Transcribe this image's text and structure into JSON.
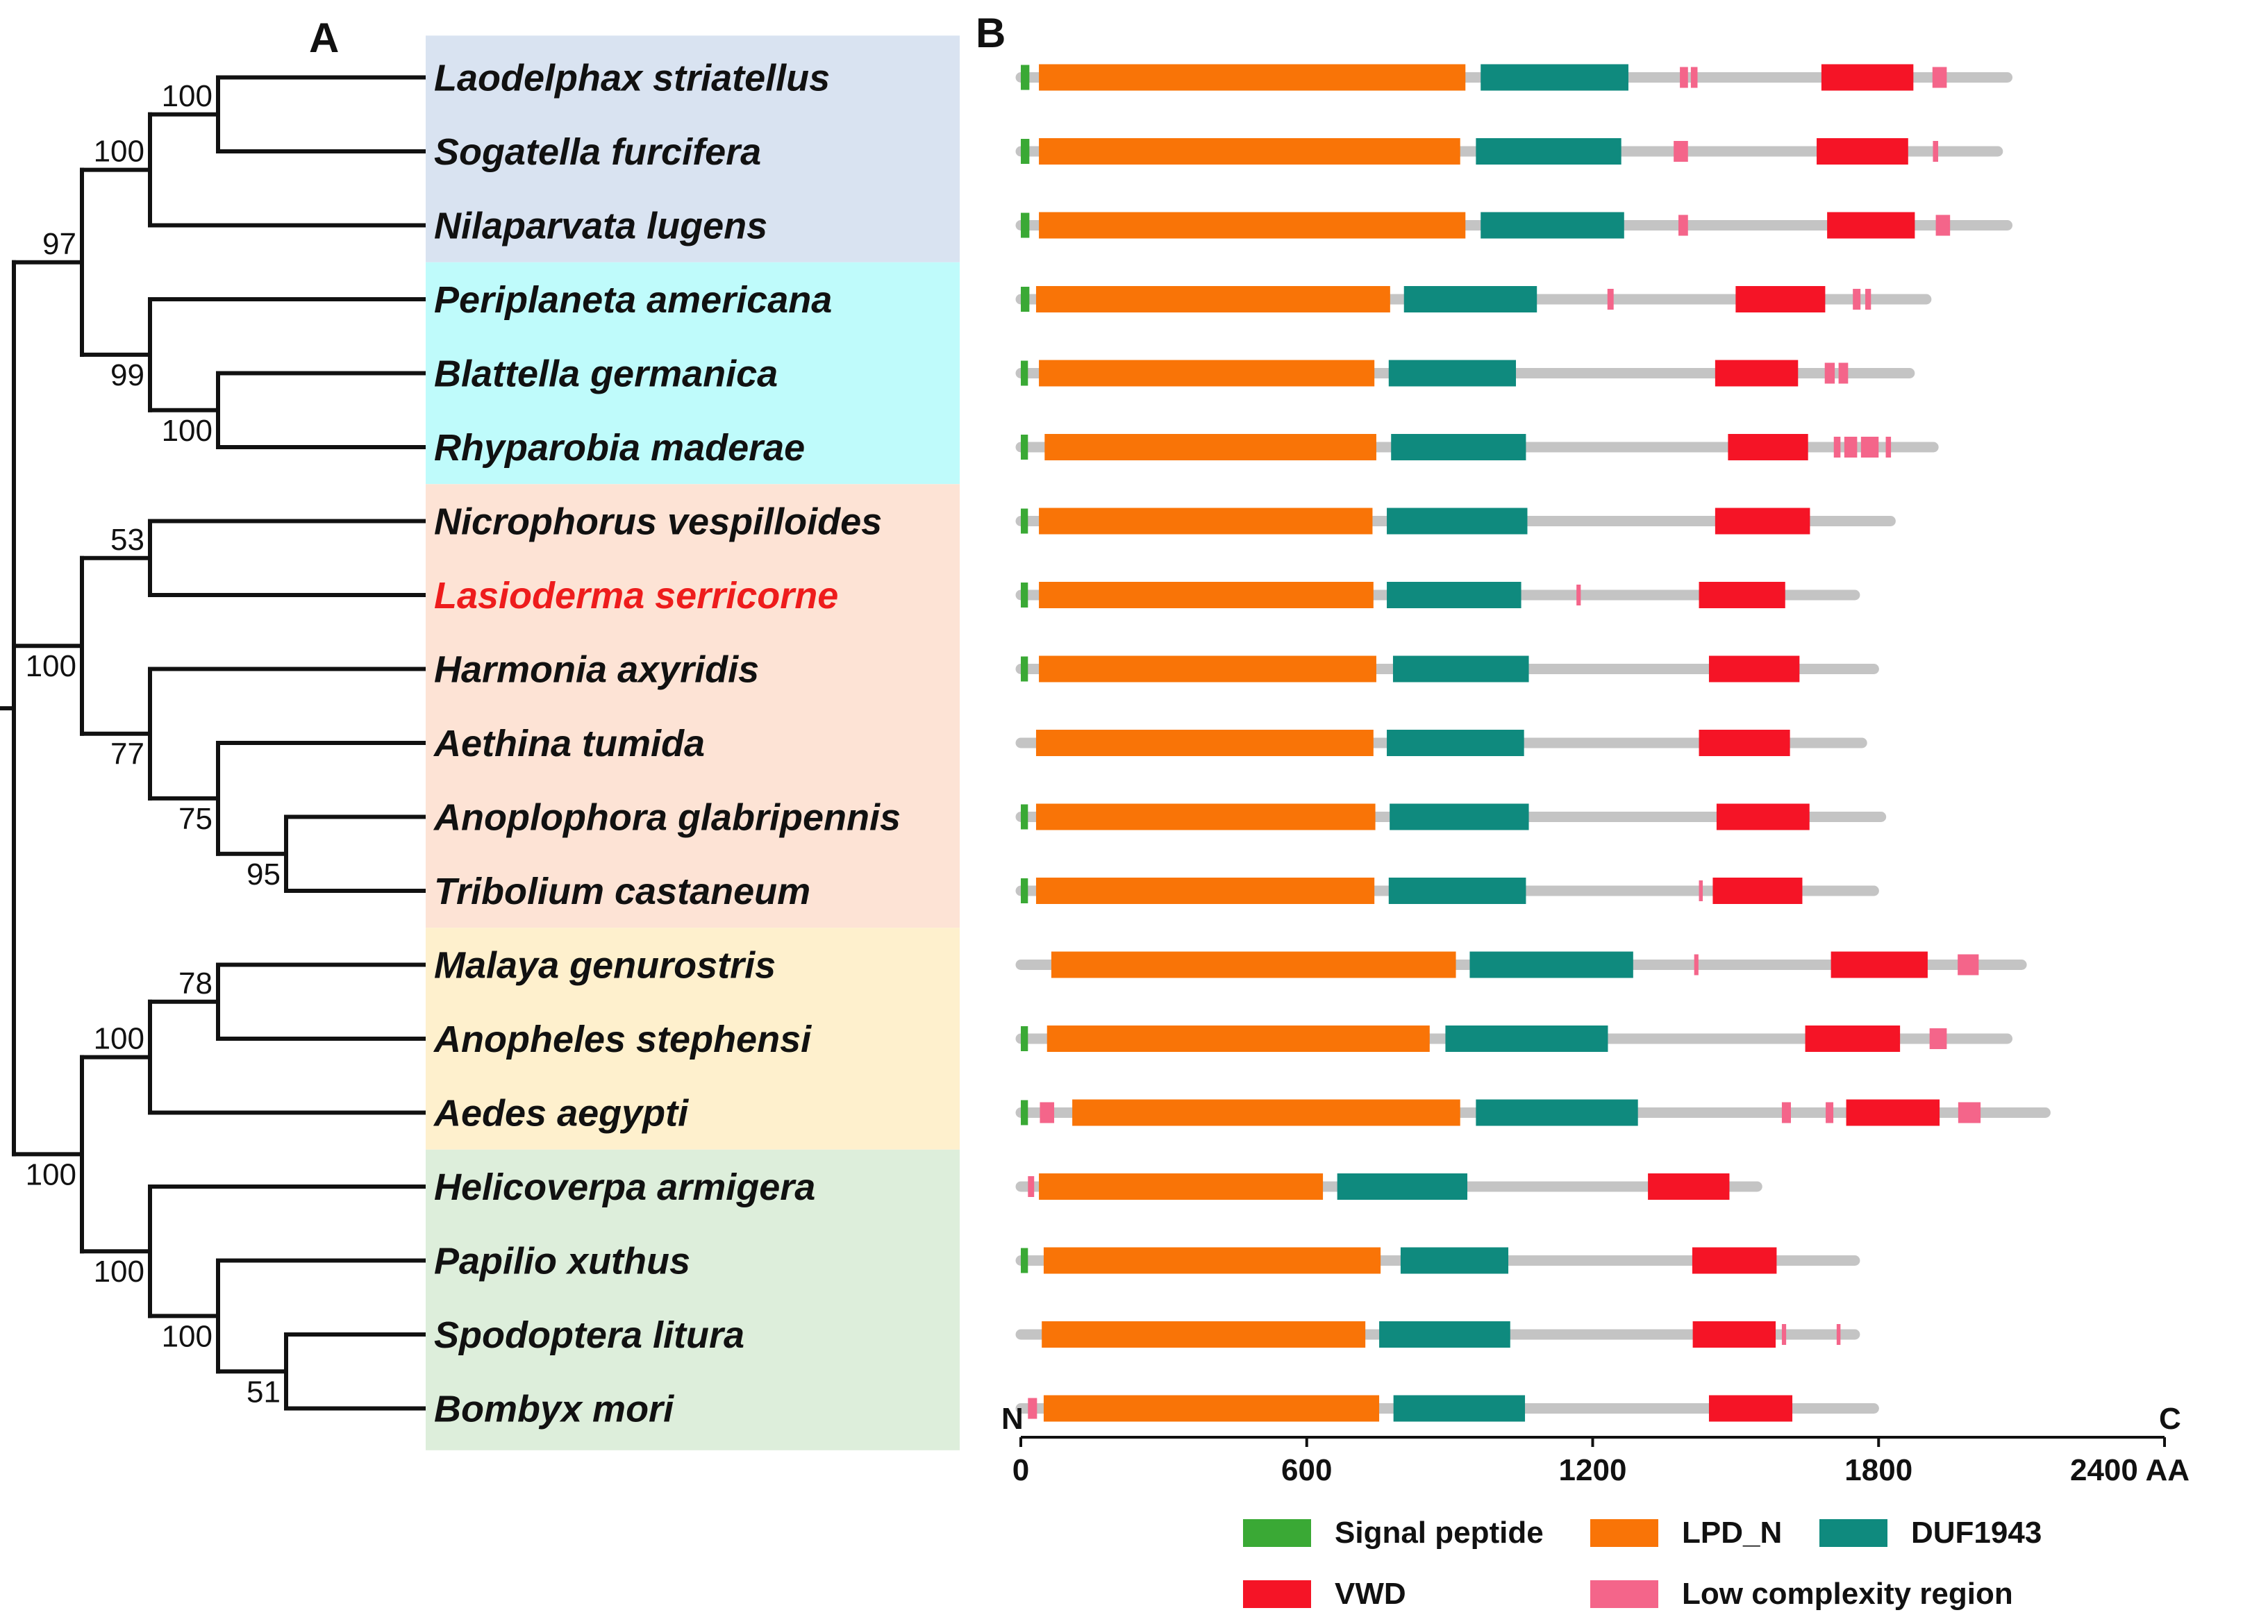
{
  "panels": {
    "a": "A",
    "b": "B"
  },
  "colors": {
    "clade1": "#d9e3f1",
    "clade2": "#bffbfb",
    "clade3": "#fde3d5",
    "clade4": "#fef0cd",
    "clade5": "#ddeedb",
    "signal": "#3aa935",
    "lpd": "#f97407",
    "duf": "#0f8a7e",
    "vwd": "#f51426",
    "lcr": "#f4658a",
    "backbone": "#c4c4c4",
    "highlight": "#ee1c1c",
    "ink": "#111111"
  },
  "species": [
    {
      "name": "Laodelphax striatellus",
      "clade": 1,
      "highlight": false
    },
    {
      "name": "Sogatella furcifera",
      "clade": 1,
      "highlight": false
    },
    {
      "name": "Nilaparvata lugens",
      "clade": 1,
      "highlight": false
    },
    {
      "name": "Periplaneta americana",
      "clade": 2,
      "highlight": false
    },
    {
      "name": "Blattella germanica",
      "clade": 2,
      "highlight": false
    },
    {
      "name": "Rhyparobia maderae",
      "clade": 2,
      "highlight": false
    },
    {
      "name": "Nicrophorus vespilloides",
      "clade": 3,
      "highlight": false
    },
    {
      "name": "Lasioderma serricorne",
      "clade": 3,
      "highlight": true
    },
    {
      "name": "Harmonia axyridis",
      "clade": 3,
      "highlight": false
    },
    {
      "name": "Aethina tumida",
      "clade": 3,
      "highlight": false
    },
    {
      "name": "Anoplophora glabripennis",
      "clade": 3,
      "highlight": false
    },
    {
      "name": "Tribolium castaneum",
      "clade": 3,
      "highlight": false
    },
    {
      "name": "Malaya genurostris",
      "clade": 4,
      "highlight": false
    },
    {
      "name": "Anopheles stephensi",
      "clade": 4,
      "highlight": false
    },
    {
      "name": "Aedes aegypti",
      "clade": 4,
      "highlight": false
    },
    {
      "name": "Helicoverpa armigera",
      "clade": 5,
      "highlight": false
    },
    {
      "name": "Papilio xuthus",
      "clade": 5,
      "highlight": false
    },
    {
      "name": "Spodoptera litura",
      "clade": 5,
      "highlight": false
    },
    {
      "name": "Bombyx mori",
      "clade": 5,
      "highlight": false
    }
  ],
  "tree": {
    "name": "root",
    "children": [
      {
        "name": "n2",
        "support": "97",
        "children": [
          {
            "name": "n3",
            "support": "100",
            "children": [
              {
                "name": "n4",
                "support": "100",
                "children": [
                  {
                    "leaf": 0
                  },
                  {
                    "leaf": 1
                  }
                ]
              },
              {
                "leaf": 2
              }
            ]
          },
          {
            "name": "n5",
            "support": "99",
            "children": [
              {
                "leaf": 3
              },
              {
                "name": "n6",
                "support": "100",
                "children": [
                  {
                    "leaf": 4
                  },
                  {
                    "leaf": 5
                  }
                ]
              }
            ]
          }
        ]
      },
      {
        "name": "n7",
        "support": "100",
        "children": [
          {
            "name": "n8",
            "support": "53",
            "children": [
              {
                "leaf": 6
              },
              {
                "leaf": 7
              }
            ]
          },
          {
            "name": "n9",
            "support": "77",
            "children": [
              {
                "leaf": 8
              },
              {
                "name": "n10",
                "support": "75",
                "children": [
                  {
                    "leaf": 9
                  },
                  {
                    "name": "n11",
                    "support": "95",
                    "children": [
                      {
                        "leaf": 10
                      },
                      {
                        "leaf": 11
                      }
                    ]
                  }
                ]
              }
            ]
          }
        ]
      },
      {
        "name": "n12",
        "support": "100",
        "children": [
          {
            "name": "n13",
            "support": "100",
            "children": [
              {
                "name": "n14",
                "support": "78",
                "children": [
                  {
                    "leaf": 12
                  },
                  {
                    "leaf": 13
                  }
                ]
              },
              {
                "leaf": 14
              }
            ]
          },
          {
            "name": "n15",
            "support": "100",
            "children": [
              {
                "leaf": 15
              },
              {
                "name": "n16",
                "support": "100",
                "children": [
                  {
                    "leaf": 16
                  },
                  {
                    "name": "n17",
                    "support": "51",
                    "children": [
                      {
                        "leaf": 17
                      },
                      {
                        "leaf": 18
                      }
                    ]
                  }
                ]
              }
            ]
          }
        ]
      }
    ]
  },
  "chart_data": {
    "type": "domain-architecture",
    "title": "",
    "xlabel": "AA",
    "xlim": [
      0,
      2400
    ],
    "ticks": [
      0,
      600,
      1200,
      1800,
      2400
    ],
    "tick_labels": [
      "0",
      "600",
      "1200",
      "1800",
      "2400 AA"
    ],
    "n_label": "N",
    "c_label": "C",
    "legend": [
      {
        "key": "signal",
        "label": "Signal peptide"
      },
      {
        "key": "lpd",
        "label": "LPD_N"
      },
      {
        "key": "duf",
        "label": "DUF1943"
      },
      {
        "key": "vwd",
        "label": "VWD"
      },
      {
        "key": "lcr",
        "label": "Low complexity region"
      }
    ],
    "proteins": [
      {
        "species": "Laodelphax striatellus",
        "length": 2070,
        "domains": [
          {
            "t": "signal",
            "s": 0,
            "e": 18
          },
          {
            "t": "lpd",
            "s": 38,
            "e": 933
          },
          {
            "t": "duf",
            "s": 965,
            "e": 1275
          },
          {
            "t": "lcr",
            "s": 1383,
            "e": 1400
          },
          {
            "t": "lcr",
            "s": 1406,
            "e": 1420
          },
          {
            "t": "vwd",
            "s": 1680,
            "e": 1873
          },
          {
            "t": "lcr",
            "s": 1913,
            "e": 1943
          }
        ]
      },
      {
        "species": "Sogatella furcifera",
        "length": 2050,
        "domains": [
          {
            "t": "signal",
            "s": 0,
            "e": 18
          },
          {
            "t": "lpd",
            "s": 38,
            "e": 922
          },
          {
            "t": "duf",
            "s": 955,
            "e": 1260
          },
          {
            "t": "lcr",
            "s": 1370,
            "e": 1400
          },
          {
            "t": "vwd",
            "s": 1670,
            "e": 1862
          },
          {
            "t": "lcr",
            "s": 1914,
            "e": 1925
          }
        ]
      },
      {
        "species": "Nilaparvata lugens",
        "length": 2070,
        "domains": [
          {
            "t": "signal",
            "s": 0,
            "e": 18
          },
          {
            "t": "lpd",
            "s": 38,
            "e": 933
          },
          {
            "t": "duf",
            "s": 965,
            "e": 1266
          },
          {
            "t": "lcr",
            "s": 1380,
            "e": 1400
          },
          {
            "t": "vwd",
            "s": 1692,
            "e": 1876
          },
          {
            "t": "lcr",
            "s": 1920,
            "e": 1950
          }
        ]
      },
      {
        "species": "Periplaneta americana",
        "length": 1900,
        "domains": [
          {
            "t": "signal",
            "s": 0,
            "e": 18
          },
          {
            "t": "lpd",
            "s": 32,
            "e": 775
          },
          {
            "t": "duf",
            "s": 804,
            "e": 1083
          },
          {
            "t": "lcr",
            "s": 1231,
            "e": 1244
          },
          {
            "t": "vwd",
            "s": 1500,
            "e": 1688
          },
          {
            "t": "lcr",
            "s": 1746,
            "e": 1762
          },
          {
            "t": "lcr",
            "s": 1772,
            "e": 1784
          }
        ]
      },
      {
        "species": "Blattella germanica",
        "length": 1865,
        "domains": [
          {
            "t": "signal",
            "s": 0,
            "e": 15
          },
          {
            "t": "lpd",
            "s": 38,
            "e": 742
          },
          {
            "t": "duf",
            "s": 772,
            "e": 1039
          },
          {
            "t": "vwd",
            "s": 1457,
            "e": 1631
          },
          {
            "t": "lcr",
            "s": 1687,
            "e": 1708
          },
          {
            "t": "lcr",
            "s": 1716,
            "e": 1736
          }
        ]
      },
      {
        "species": "Rhyparobia maderae",
        "length": 1915,
        "domains": [
          {
            "t": "signal",
            "s": 0,
            "e": 15
          },
          {
            "t": "lpd",
            "s": 50,
            "e": 746
          },
          {
            "t": "duf",
            "s": 777,
            "e": 1060
          },
          {
            "t": "vwd",
            "s": 1484,
            "e": 1652
          },
          {
            "t": "lcr",
            "s": 1706,
            "e": 1720
          },
          {
            "t": "lcr",
            "s": 1728,
            "e": 1755
          },
          {
            "t": "lcr",
            "s": 1763,
            "e": 1800
          },
          {
            "t": "lcr",
            "s": 1815,
            "e": 1826
          }
        ]
      },
      {
        "species": "Nicrophorus vespilloides",
        "length": 1825,
        "domains": [
          {
            "t": "signal",
            "s": 0,
            "e": 15
          },
          {
            "t": "lpd",
            "s": 38,
            "e": 738
          },
          {
            "t": "duf",
            "s": 768,
            "e": 1063
          },
          {
            "t": "vwd",
            "s": 1457,
            "e": 1656
          }
        ]
      },
      {
        "species": "Lasioderma serricorne",
        "length": 1750,
        "domains": [
          {
            "t": "signal",
            "s": 0,
            "e": 15
          },
          {
            "t": "lpd",
            "s": 38,
            "e": 740
          },
          {
            "t": "duf",
            "s": 768,
            "e": 1050
          },
          {
            "t": "lcr",
            "s": 1166,
            "e": 1175
          },
          {
            "t": "vwd",
            "s": 1423,
            "e": 1604
          }
        ]
      },
      {
        "species": "Harmonia axyridis",
        "length": 1790,
        "domains": [
          {
            "t": "signal",
            "s": 0,
            "e": 15
          },
          {
            "t": "lpd",
            "s": 38,
            "e": 746
          },
          {
            "t": "duf",
            "s": 781,
            "e": 1066
          },
          {
            "t": "vwd",
            "s": 1444,
            "e": 1634
          }
        ]
      },
      {
        "species": "Aethina tumida",
        "length": 1765,
        "domains": [
          {
            "t": "lpd",
            "s": 32,
            "e": 740
          },
          {
            "t": "duf",
            "s": 768,
            "e": 1056
          },
          {
            "t": "vwd",
            "s": 1423,
            "e": 1614
          }
        ]
      },
      {
        "species": "Anoplophora glabripennis",
        "length": 1805,
        "domains": [
          {
            "t": "signal",
            "s": 0,
            "e": 15
          },
          {
            "t": "lpd",
            "s": 32,
            "e": 744
          },
          {
            "t": "duf",
            "s": 774,
            "e": 1066
          },
          {
            "t": "vwd",
            "s": 1460,
            "e": 1655
          }
        ]
      },
      {
        "species": "Tribolium castaneum",
        "length": 1790,
        "domains": [
          {
            "t": "signal",
            "s": 0,
            "e": 15
          },
          {
            "t": "lpd",
            "s": 32,
            "e": 742
          },
          {
            "t": "duf",
            "s": 772,
            "e": 1060
          },
          {
            "t": "lcr",
            "s": 1423,
            "e": 1431
          },
          {
            "t": "vwd",
            "s": 1452,
            "e": 1640
          }
        ]
      },
      {
        "species": "Malaya genurostris",
        "length": 2100,
        "domains": [
          {
            "t": "lpd",
            "s": 64,
            "e": 913
          },
          {
            "t": "duf",
            "s": 942,
            "e": 1285
          },
          {
            "t": "lcr",
            "s": 1413,
            "e": 1422
          },
          {
            "t": "vwd",
            "s": 1700,
            "e": 1903
          },
          {
            "t": "lcr",
            "s": 1966,
            "e": 2010
          }
        ]
      },
      {
        "species": "Anopheles stephensi",
        "length": 2070,
        "domains": [
          {
            "t": "signal",
            "s": 0,
            "e": 15
          },
          {
            "t": "lpd",
            "s": 55,
            "e": 858
          },
          {
            "t": "duf",
            "s": 891,
            "e": 1232
          },
          {
            "t": "vwd",
            "s": 1646,
            "e": 1845
          },
          {
            "t": "lcr",
            "s": 1907,
            "e": 1943
          }
        ]
      },
      {
        "species": "Aedes aegypti",
        "length": 2150,
        "domains": [
          {
            "t": "signal",
            "s": 0,
            "e": 15
          },
          {
            "t": "lcr",
            "s": 40,
            "e": 70
          },
          {
            "t": "lpd",
            "s": 108,
            "e": 922
          },
          {
            "t": "duf",
            "s": 955,
            "e": 1295
          },
          {
            "t": "lcr",
            "s": 1597,
            "e": 1616
          },
          {
            "t": "lcr",
            "s": 1689,
            "e": 1705
          },
          {
            "t": "vwd",
            "s": 1732,
            "e": 1928
          },
          {
            "t": "lcr",
            "s": 1967,
            "e": 2014
          }
        ]
      },
      {
        "species": "Helicoverpa armigera",
        "length": 1545,
        "domains": [
          {
            "t": "lcr",
            "s": 15,
            "e": 28
          },
          {
            "t": "lpd",
            "s": 38,
            "e": 634
          },
          {
            "t": "duf",
            "s": 664,
            "e": 937
          },
          {
            "t": "vwd",
            "s": 1316,
            "e": 1487
          }
        ]
      },
      {
        "species": "Papilio xuthus",
        "length": 1750,
        "domains": [
          {
            "t": "signal",
            "s": 0,
            "e": 15
          },
          {
            "t": "lpd",
            "s": 48,
            "e": 755
          },
          {
            "t": "duf",
            "s": 797,
            "e": 1023
          },
          {
            "t": "vwd",
            "s": 1409,
            "e": 1586
          }
        ]
      },
      {
        "species": "Spodoptera litura",
        "length": 1750,
        "domains": [
          {
            "t": "lpd",
            "s": 44,
            "e": 723
          },
          {
            "t": "duf",
            "s": 752,
            "e": 1027
          },
          {
            "t": "vwd",
            "s": 1410,
            "e": 1584
          },
          {
            "t": "lcr",
            "s": 1597,
            "e": 1606
          },
          {
            "t": "lcr",
            "s": 1712,
            "e": 1720
          }
        ]
      },
      {
        "species": "Bombyx mori",
        "length": 1790,
        "domains": [
          {
            "t": "lcr",
            "s": 15,
            "e": 34
          },
          {
            "t": "lpd",
            "s": 48,
            "e": 752
          },
          {
            "t": "duf",
            "s": 782,
            "e": 1058
          },
          {
            "t": "vwd",
            "s": 1444,
            "e": 1619
          }
        ]
      }
    ]
  }
}
